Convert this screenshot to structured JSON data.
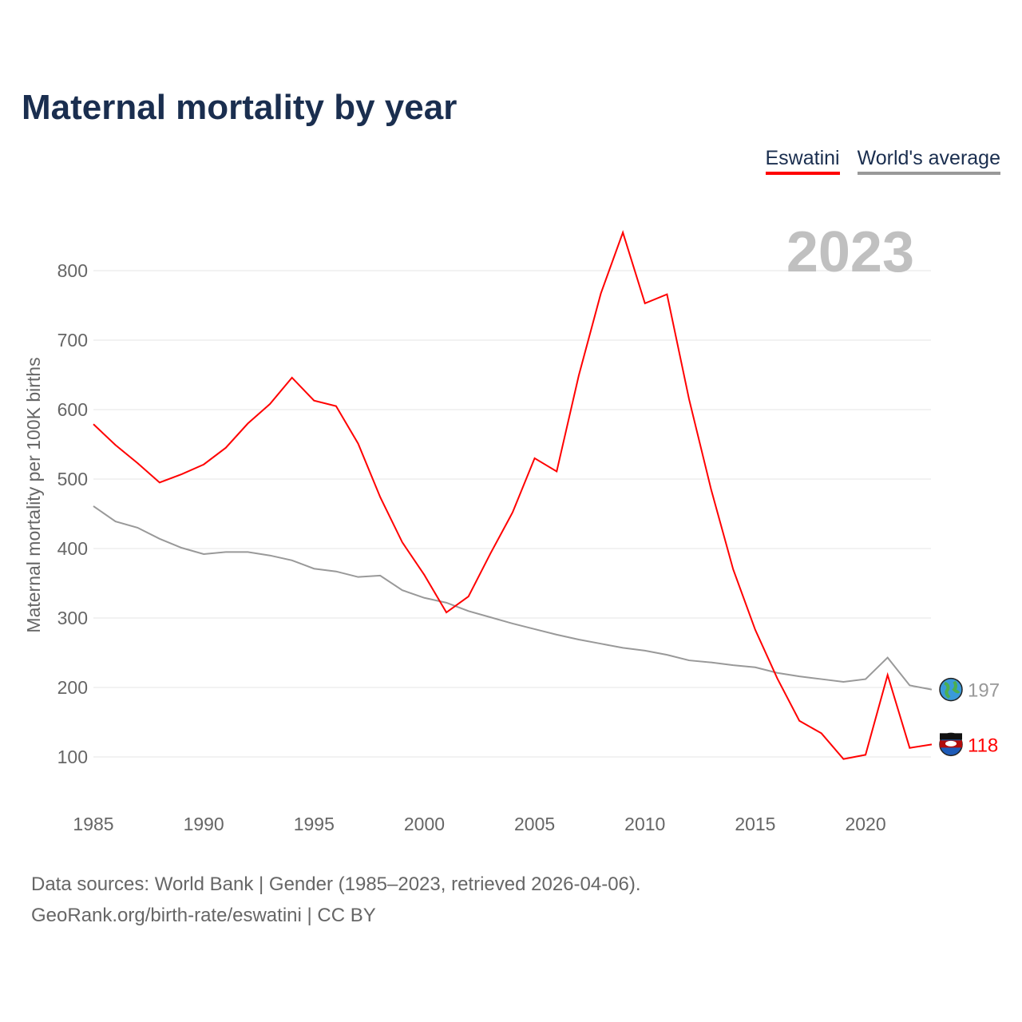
{
  "title": "Maternal mortality by year",
  "legend": [
    {
      "label": "Eswatini",
      "color": "#ff0000"
    },
    {
      "label": "World's average",
      "color": "#999999"
    }
  ],
  "year_label": "2023",
  "footer": {
    "line1": "Data sources: World Bank | Gender (1985–2023, retrieved 2026-04-06).",
    "line2": "GeoRank.org/birth-rate/eswatini | CC BY"
  },
  "chart_data": {
    "type": "line",
    "title": "Maternal mortality by year",
    "xlabel": "",
    "ylabel": "Maternal mortality per 100K births",
    "xlim": [
      1985,
      2023
    ],
    "ylim": [
      50,
      880
    ],
    "xticks": [
      1985,
      1990,
      1995,
      2000,
      2005,
      2010,
      2015,
      2020
    ],
    "yticks": [
      100,
      200,
      300,
      400,
      500,
      600,
      700,
      800
    ],
    "grid": true,
    "legend_position": "top-right",
    "x": [
      1985,
      1986,
      1987,
      1988,
      1989,
      1990,
      1991,
      1992,
      1993,
      1994,
      1995,
      1996,
      1997,
      1998,
      1999,
      2000,
      2001,
      2002,
      2003,
      2004,
      2005,
      2006,
      2007,
      2008,
      2009,
      2010,
      2011,
      2012,
      2013,
      2014,
      2015,
      2016,
      2017,
      2018,
      2019,
      2020,
      2021,
      2022,
      2023
    ],
    "series": [
      {
        "name": "Eswatini",
        "color": "#ff0000",
        "end_label": "118",
        "values": [
          579,
          549,
          523,
          495,
          507,
          521,
          545,
          580,
          608,
          646,
          613,
          605,
          551,
          474,
          409,
          362,
          308,
          331,
          393,
          452,
          530,
          511,
          649,
          767,
          855,
          753,
          766,
          615,
          485,
          370,
          283,
          213,
          152,
          134,
          97,
          103,
          218,
          113,
          118
        ]
      },
      {
        "name": "World's average",
        "color": "#999999",
        "end_label": "197",
        "values": [
          461,
          439,
          430,
          414,
          401,
          392,
          395,
          395,
          390,
          383,
          371,
          367,
          359,
          361,
          340,
          329,
          322,
          310,
          301,
          292,
          284,
          276,
          269,
          263,
          257,
          253,
          247,
          239,
          236,
          232,
          229,
          221,
          216,
          212,
          208,
          212,
          243,
          203,
          197
        ]
      }
    ]
  }
}
